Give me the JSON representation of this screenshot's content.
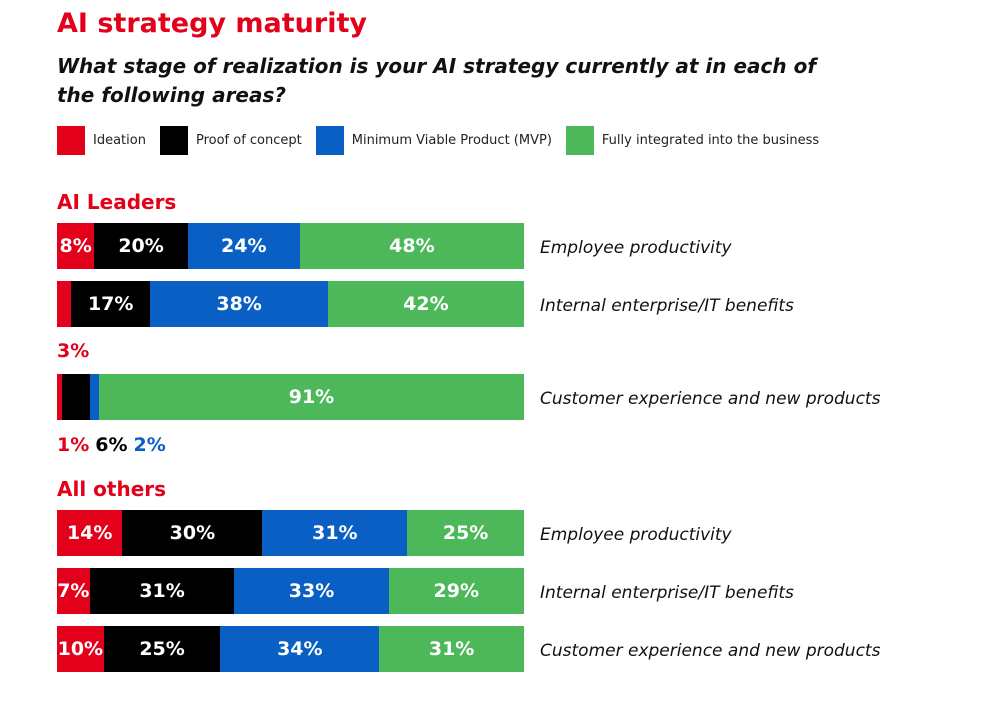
{
  "title": "AI strategy maturity",
  "subtitle": "What stage of realization is your AI strategy currently at in each of the following areas?",
  "colors": {
    "ideation": "#e2001a",
    "poc": "#000000",
    "mvp": "#0a5fc4",
    "integrated": "#4db85a",
    "accent": "#e2001a"
  },
  "legend": [
    {
      "label": "Ideation",
      "color": "#e2001a"
    },
    {
      "label": "Proof of concept",
      "color": "#000000"
    },
    {
      "label": "Minimum Viable Product (MVP)",
      "color": "#0a5fc4"
    },
    {
      "label": "Fully integrated into the business",
      "color": "#4db85a"
    }
  ],
  "chart_data": {
    "type": "bar",
    "orientation": "horizontal-stacked-100",
    "series_names": [
      "Ideation",
      "Proof of concept",
      "Minimum Viable Product (MVP)",
      "Fully integrated into the business"
    ],
    "groups": [
      {
        "name": "AI Leaders",
        "rows": [
          {
            "category": "Employee productivity",
            "values": [
              8,
              20,
              24,
              48
            ],
            "labels": [
              "8%",
              "20%",
              "24%",
              "48%"
            ]
          },
          {
            "category": "Internal enterprise/IT benefits",
            "values": [
              3,
              17,
              38,
              42
            ],
            "labels": [
              "",
              "17%",
              "38%",
              "42%"
            ]
          },
          {
            "category": "Customer experience and new products",
            "values": [
              1,
              6,
              2,
              91
            ],
            "labels": [
              "",
              "",
              "",
              "91%"
            ]
          }
        ]
      },
      {
        "name": "All others",
        "rows": [
          {
            "category": "Employee productivity",
            "values": [
              14,
              30,
              31,
              25
            ],
            "labels": [
              "14%",
              "30%",
              "31%",
              "25%"
            ]
          },
          {
            "category": "Internal enterprise/IT benefits",
            "values": [
              7,
              31,
              33,
              29
            ],
            "labels": [
              "7%",
              "31%",
              "33%",
              "29%"
            ]
          },
          {
            "category": "Customer experience and new products",
            "values": [
              10,
              25,
              34,
              31
            ],
            "labels": [
              "10%",
              "25%",
              "34%",
              "31%"
            ]
          }
        ]
      }
    ],
    "outside_labels": {
      "above_leaders_cx": "3%",
      "below_leaders_cx": [
        {
          "text": "1%",
          "color": "#e2001a"
        },
        {
          "text": "6%",
          "color": "#000000"
        },
        {
          "text": "2%",
          "color": "#0a5fc4"
        }
      ]
    }
  }
}
